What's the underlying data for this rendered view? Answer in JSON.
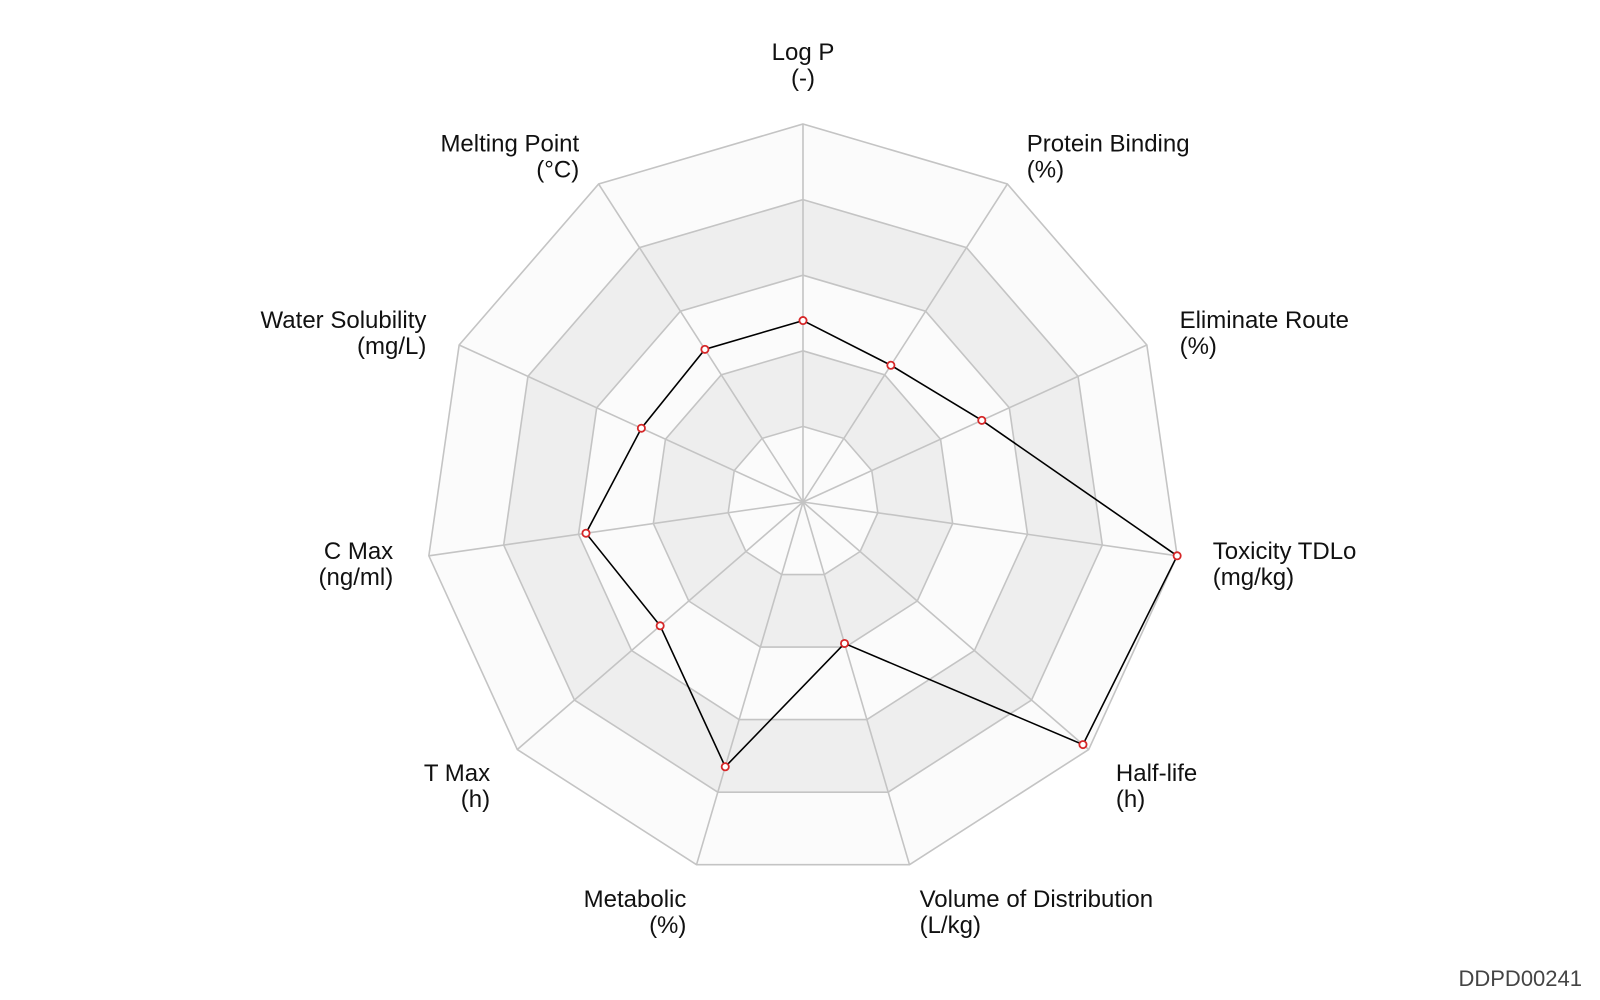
{
  "chart_data": {
    "type": "radar",
    "title": "",
    "axes": [
      {
        "name": "Log P",
        "unit": "(-)"
      },
      {
        "name": "Protein Binding",
        "unit": "(%)"
      },
      {
        "name": "Eliminate Route",
        "unit": "(%)"
      },
      {
        "name": "Toxicity TDLo",
        "unit": "(mg/kg)"
      },
      {
        "name": "Half-life",
        "unit": "(h)"
      },
      {
        "name": "Volume of Distribution",
        "unit": "(L/kg)"
      },
      {
        "name": "Metabolic",
        "unit": "(%)"
      },
      {
        "name": "T Max",
        "unit": "(h)"
      },
      {
        "name": "C Max",
        "unit": "(ng/ml)"
      },
      {
        "name": "Water Solubility",
        "unit": "(mg/L)"
      },
      {
        "name": "Melting Point",
        "unit": "(°C)"
      }
    ],
    "series": [
      {
        "values": [
          0.48,
          0.43,
          0.52,
          1.0,
          0.98,
          0.39,
          0.73,
          0.5,
          0.58,
          0.47,
          0.48
        ]
      }
    ],
    "range": [
      0,
      1
    ],
    "rings": 5,
    "grid": true,
    "band_colors": [
      "#fbfbfb",
      "#eeeeee"
    ],
    "grid_color": "#c4c4c4",
    "line_color": "#000000",
    "marker_color": "#d62728"
  },
  "watermark": "DDPD00241"
}
